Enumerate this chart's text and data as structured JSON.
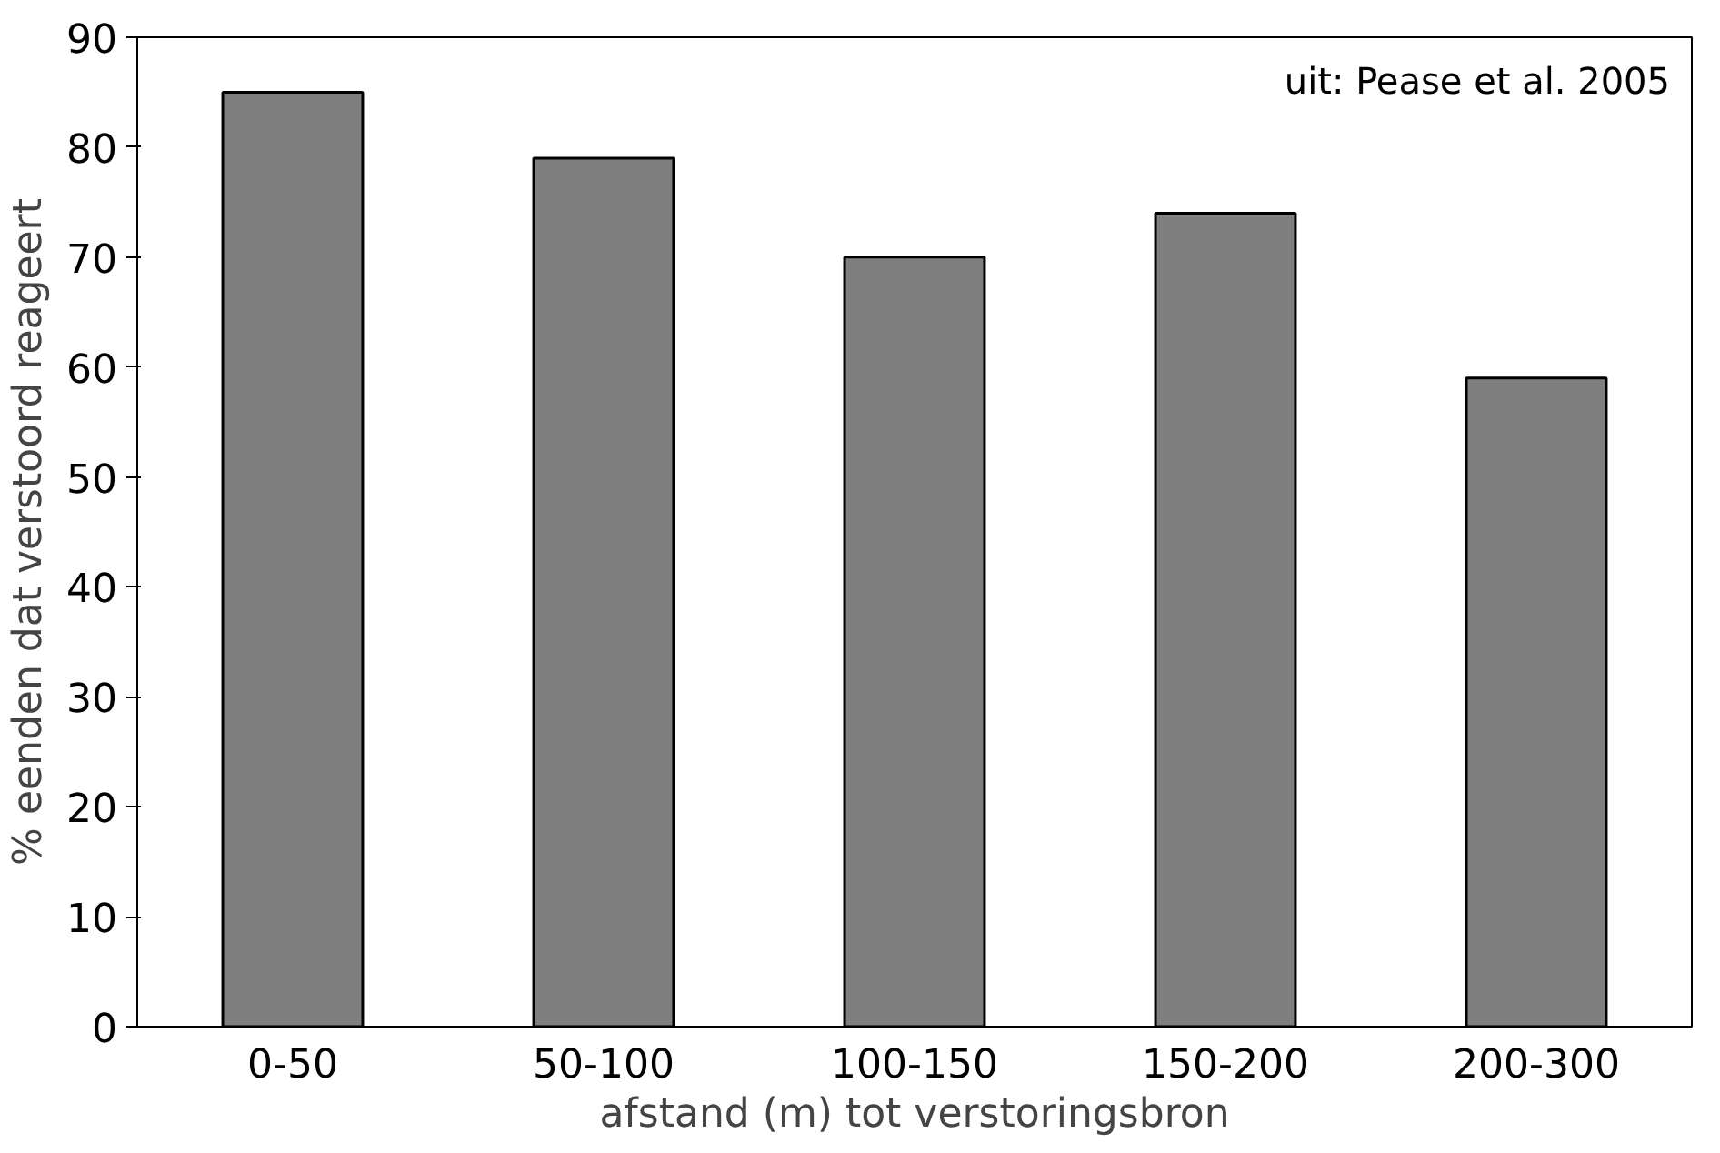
{
  "chart_data": {
    "type": "bar",
    "xlabel": "afstand (m) tot verstoringsbron",
    "ylabel": "% eenden dat verstoord reageert",
    "categories": [
      "0-50",
      "50-100",
      "100-150",
      "150-200",
      "200-300"
    ],
    "values": [
      85,
      79,
      70,
      74,
      59
    ],
    "color": "#7f7f7f",
    "ylim": [
      0,
      90
    ],
    "yticks": [
      0,
      10,
      20,
      30,
      40,
      50,
      60,
      70,
      80,
      90
    ],
    "grid": false,
    "annotations": [
      "uit: Pease et al. 2005"
    ]
  }
}
